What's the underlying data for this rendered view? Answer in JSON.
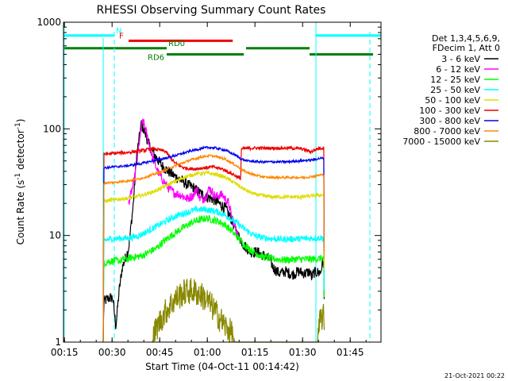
{
  "chart_data": {
    "type": "line",
    "title": "RHESSI Observing Summary Count Rates",
    "xlabel": "Start Time (04-Oct-11 00:14:42)",
    "ylabel_main": "Count Rate (s",
    "ylabel_sup1": "-1",
    "ylabel_mid": " detector",
    "ylabel_sup2": "-1",
    "ylabel_end": ")",
    "footer_date": "21-Oct-2021 00:22",
    "yscale": "log",
    "ylim": [
      1,
      1000
    ],
    "xlim_minutes": [
      0.0,
      100.0
    ],
    "x_ticks": [
      {
        "label": "00:15",
        "min": 0.3
      },
      {
        "label": "00:30",
        "min": 15.3
      },
      {
        "label": "00:45",
        "min": 30.3
      },
      {
        "label": "01:00",
        "min": 45.3
      },
      {
        "label": "01:15",
        "min": 60.3
      },
      {
        "label": "01:30",
        "min": 75.3
      },
      {
        "label": "01:45",
        "min": 90.3
      }
    ],
    "y_ticks": [
      {
        "label": "1",
        "value": 1
      },
      {
        "label": "10",
        "value": 10
      },
      {
        "label": "100",
        "value": 100
      },
      {
        "label": "1000",
        "value": 1000
      }
    ],
    "legend": {
      "header": [
        "Det 1,3,4,5,6,9,",
        "FDecim 1, Att 0"
      ],
      "entries": [
        {
          "label": "3 - 6 keV",
          "color": "#000000"
        },
        {
          "label": "6 - 12 keV",
          "color": "#ff00ff"
        },
        {
          "label": "12 - 25 keV",
          "color": "#00ff00"
        },
        {
          "label": "25 - 50 keV",
          "color": "#00ffff"
        },
        {
          "label": "50 - 100 keV",
          "color": "#dddd00"
        },
        {
          "label": "100 - 300 keV",
          "color": "#ee0000"
        },
        {
          "label": "300 - 800 keV",
          "color": "#0000ee"
        },
        {
          "label": "800 - 7000 keV",
          "color": "#ff8800"
        },
        {
          "label": "7000 - 15000 keV",
          "color": "#888800"
        }
      ]
    },
    "state_bars": [
      {
        "label": "N",
        "color": "#00ffff",
        "level": 750,
        "segments": [
          [
            0.0,
            16.0
          ],
          [
            79.5,
            100.0
          ]
        ]
      },
      {
        "label": "F",
        "color": "#ee0000",
        "level": 670,
        "segments": [
          [
            20.5,
            53.3
          ]
        ]
      },
      {
        "label": "RD0",
        "color": "#008000",
        "level": 570,
        "segments": [
          [
            0.0,
            32.5
          ],
          [
            57.5,
            77.5
          ]
        ]
      },
      {
        "label": "RD6",
        "color": "#008000",
        "level": 500,
        "segments": [
          [
            32.5,
            56.8
          ],
          [
            77.5,
            97.5
          ]
        ]
      }
    ],
    "eclipse_lines": [
      {
        "color": "#00ffff",
        "min": 16.0,
        "style": "dashed"
      },
      {
        "color": "#00ffff",
        "min": 96.5,
        "style": "dashed"
      }
    ],
    "series": [
      {
        "name": "3 - 6 keV",
        "color": "#000000",
        "points": [
          [
            12.5,
            1
          ],
          [
            12.7,
            2.4
          ],
          [
            14.5,
            2.6
          ],
          [
            15.5,
            2.6
          ],
          [
            16.5,
            1.4
          ],
          [
            17.5,
            3
          ],
          [
            18.5,
            5
          ],
          [
            20.5,
            7.5
          ],
          [
            22,
            20
          ],
          [
            23,
            55
          ],
          [
            24.5,
            110
          ],
          [
            25.5,
            95
          ],
          [
            27,
            70
          ],
          [
            29,
            55
          ],
          [
            31,
            45
          ],
          [
            33,
            40
          ],
          [
            35,
            36
          ],
          [
            37,
            33
          ],
          [
            39,
            30
          ],
          [
            41,
            28
          ],
          [
            43,
            25
          ],
          [
            45,
            23
          ],
          [
            47,
            22
          ],
          [
            49,
            20
          ],
          [
            51,
            18
          ],
          [
            53,
            14
          ],
          [
            55,
            10
          ],
          [
            57,
            8
          ],
          [
            59,
            7
          ],
          [
            61,
            7
          ],
          [
            63,
            6.5
          ],
          [
            65,
            6
          ],
          [
            66,
            5
          ],
          [
            68,
            4.4
          ],
          [
            70,
            4.6
          ],
          [
            72,
            4.3
          ],
          [
            74,
            4.6
          ],
          [
            76,
            4.4
          ],
          [
            77.8,
            4.6
          ],
          [
            78,
            4
          ],
          [
            79,
            4.5
          ],
          [
            81,
            4.5
          ],
          [
            81.5,
            5.5
          ],
          [
            82,
            5.5
          ],
          [
            82.2,
            1
          ]
        ],
        "noise": 0.12
      },
      {
        "name": "6 - 12 keV",
        "color": "#ff00ff",
        "points": [
          [
            20.5,
            20
          ],
          [
            21,
            23
          ],
          [
            22,
            30
          ],
          [
            23,
            45
          ],
          [
            24,
            80
          ],
          [
            25,
            120
          ],
          [
            26,
            95
          ],
          [
            27,
            70
          ],
          [
            28,
            55
          ],
          [
            29,
            45
          ],
          [
            30,
            38
          ],
          [
            31,
            34
          ],
          [
            33,
            28
          ],
          [
            35,
            25
          ],
          [
            37,
            24
          ],
          [
            39,
            22
          ],
          [
            41,
            24
          ],
          [
            42,
            28
          ],
          [
            43,
            22
          ],
          [
            44,
            22
          ],
          [
            45,
            24
          ],
          [
            46,
            28
          ],
          [
            47,
            25
          ],
          [
            48,
            23
          ],
          [
            49,
            24
          ],
          [
            50,
            24
          ],
          [
            51,
            22
          ],
          [
            52,
            20
          ],
          [
            53,
            15
          ],
          [
            54,
            12
          ],
          [
            55,
            10
          ]
        ],
        "noise": 0.1
      },
      {
        "name": "12 - 25 keV",
        "color": "#00ff00",
        "points": [
          [
            12.5,
            1
          ],
          [
            12.7,
            5.5
          ],
          [
            14,
            5.7
          ],
          [
            16,
            5.8
          ],
          [
            18,
            5.8
          ],
          [
            19,
            6
          ],
          [
            20.5,
            6
          ],
          [
            21,
            6.2
          ],
          [
            23,
            6.3
          ],
          [
            25,
            6.5
          ],
          [
            27,
            7
          ],
          [
            29,
            7.5
          ],
          [
            31,
            8.5
          ],
          [
            33,
            9.5
          ],
          [
            35,
            10.5
          ],
          [
            37,
            11.5
          ],
          [
            39,
            12.5
          ],
          [
            41,
            13.5
          ],
          [
            43,
            14
          ],
          [
            45,
            14.5
          ],
          [
            47,
            14
          ],
          [
            49,
            13.5
          ],
          [
            51,
            12.5
          ],
          [
            53,
            11
          ],
          [
            55,
            9.5
          ],
          [
            57,
            8.2
          ],
          [
            59,
            7.3
          ],
          [
            61,
            6.7
          ],
          [
            63,
            6.3
          ],
          [
            65,
            6.1
          ],
          [
            67,
            6
          ],
          [
            69,
            5.9
          ],
          [
            71,
            5.9
          ],
          [
            73,
            6
          ],
          [
            75,
            6
          ],
          [
            77,
            6
          ],
          [
            79,
            6
          ],
          [
            81,
            6.1
          ],
          [
            82,
            6.1
          ],
          [
            82.2,
            1
          ]
        ],
        "noise": 0.08
      },
      {
        "name": "25 - 50 keV",
        "color": "#00ffff",
        "points": [
          [
            12.5,
            1
          ],
          [
            12.7,
            9
          ],
          [
            15,
            9.3
          ],
          [
            18,
            9.4
          ],
          [
            21,
            9.5
          ],
          [
            24,
            10
          ],
          [
            27,
            11.2
          ],
          [
            30,
            12.5
          ],
          [
            33,
            14
          ],
          [
            36,
            15.5
          ],
          [
            39,
            16.5
          ],
          [
            42,
            17.5
          ],
          [
            45,
            17.5
          ],
          [
            48,
            16.8
          ],
          [
            51,
            15.5
          ],
          [
            54,
            13.5
          ],
          [
            57,
            11.5
          ],
          [
            60,
            10
          ],
          [
            63,
            9.5
          ],
          [
            66,
            9.3
          ],
          [
            69,
            9.2
          ],
          [
            72,
            9.3
          ],
          [
            75,
            9.3
          ],
          [
            78,
            9.4
          ],
          [
            81,
            9.5
          ],
          [
            82,
            9.5
          ],
          [
            82.2,
            1
          ]
        ],
        "noise": 0.07
      },
      {
        "name": "50 - 100 keV",
        "color": "#dddd00",
        "points": [
          [
            12.5,
            1
          ],
          [
            12.7,
            21
          ],
          [
            15,
            21.5
          ],
          [
            18,
            22
          ],
          [
            21,
            22.5
          ],
          [
            24,
            23.5
          ],
          [
            27,
            25
          ],
          [
            30,
            27
          ],
          [
            33,
            30
          ],
          [
            36,
            33
          ],
          [
            39,
            36
          ],
          [
            42,
            38
          ],
          [
            45,
            38.5
          ],
          [
            48,
            37.5
          ],
          [
            51,
            35
          ],
          [
            54,
            31
          ],
          [
            57,
            27
          ],
          [
            60,
            24.5
          ],
          [
            63,
            23.5
          ],
          [
            66,
            23
          ],
          [
            69,
            23
          ],
          [
            72,
            23
          ],
          [
            75,
            23
          ],
          [
            78,
            23.5
          ],
          [
            81,
            24
          ],
          [
            82,
            24
          ],
          [
            82.2,
            1
          ]
        ],
        "noise": 0.04
      },
      {
        "name": "100 - 300 keV",
        "color": "#ee0000",
        "points": [
          [
            12.5,
            1
          ],
          [
            12.7,
            58
          ],
          [
            16,
            59
          ],
          [
            20,
            60
          ],
          [
            24,
            62
          ],
          [
            28,
            65
          ],
          [
            32,
            62
          ],
          [
            35,
            48
          ],
          [
            38,
            43
          ],
          [
            41,
            42
          ],
          [
            44,
            43
          ],
          [
            47,
            44
          ],
          [
            50,
            42
          ],
          [
            53,
            38
          ],
          [
            55.8,
            34
          ],
          [
            56,
            65
          ],
          [
            60,
            66
          ],
          [
            64,
            66
          ],
          [
            68,
            66
          ],
          [
            72,
            66
          ],
          [
            75,
            65
          ],
          [
            78,
            61
          ],
          [
            80,
            65
          ],
          [
            81,
            66
          ],
          [
            82,
            66
          ],
          [
            82.2,
            1
          ]
        ],
        "noise": 0.035
      },
      {
        "name": "300 - 800 keV",
        "color": "#0000ee",
        "points": [
          [
            12.5,
            1
          ],
          [
            12.7,
            43
          ],
          [
            16,
            44
          ],
          [
            20,
            45
          ],
          [
            24,
            47
          ],
          [
            28,
            50
          ],
          [
            32,
            53
          ],
          [
            36,
            57
          ],
          [
            40,
            62
          ],
          [
            44,
            66
          ],
          [
            46,
            67
          ],
          [
            48,
            66
          ],
          [
            51,
            63
          ],
          [
            54,
            57
          ],
          [
            56,
            52
          ],
          [
            58,
            50
          ],
          [
            62,
            49
          ],
          [
            66,
            49
          ],
          [
            70,
            49
          ],
          [
            74,
            50
          ],
          [
            78,
            51
          ],
          [
            81,
            53
          ],
          [
            82,
            53
          ],
          [
            82.2,
            1
          ]
        ],
        "noise": 0.025
      },
      {
        "name": "800 - 7000 keV",
        "color": "#ff8800",
        "points": [
          [
            12.5,
            1
          ],
          [
            12.7,
            31
          ],
          [
            16,
            31.5
          ],
          [
            20,
            32.5
          ],
          [
            24,
            34
          ],
          [
            28,
            37
          ],
          [
            32,
            41
          ],
          [
            36,
            46
          ],
          [
            40,
            51
          ],
          [
            44,
            55
          ],
          [
            46,
            56
          ],
          [
            48,
            55
          ],
          [
            51,
            52
          ],
          [
            54,
            46
          ],
          [
            57,
            40
          ],
          [
            60,
            37
          ],
          [
            64,
            35
          ],
          [
            68,
            35
          ],
          [
            72,
            35
          ],
          [
            76,
            35
          ],
          [
            79,
            36
          ],
          [
            81,
            37
          ],
          [
            82,
            37
          ],
          [
            82.2,
            1
          ]
        ],
        "noise": 0.025
      },
      {
        "name": "7000 - 15000 keV",
        "color": "#888800",
        "points": [
          [
            28,
            1
          ],
          [
            29,
            1.3
          ],
          [
            31,
            1.7
          ],
          [
            33,
            2.1
          ],
          [
            35,
            2.5
          ],
          [
            37,
            2.8
          ],
          [
            39,
            3
          ],
          [
            41,
            3
          ],
          [
            43,
            2.8
          ],
          [
            45,
            2.5
          ],
          [
            47,
            2.1
          ],
          [
            49,
            1.7
          ],
          [
            51,
            1.4
          ],
          [
            53,
            1.2
          ],
          [
            54,
            1
          ],
          [
            80,
            1
          ],
          [
            81,
            1.7
          ],
          [
            82,
            1.7
          ],
          [
            82.2,
            1
          ]
        ],
        "noise": 0.3
      }
    ]
  }
}
